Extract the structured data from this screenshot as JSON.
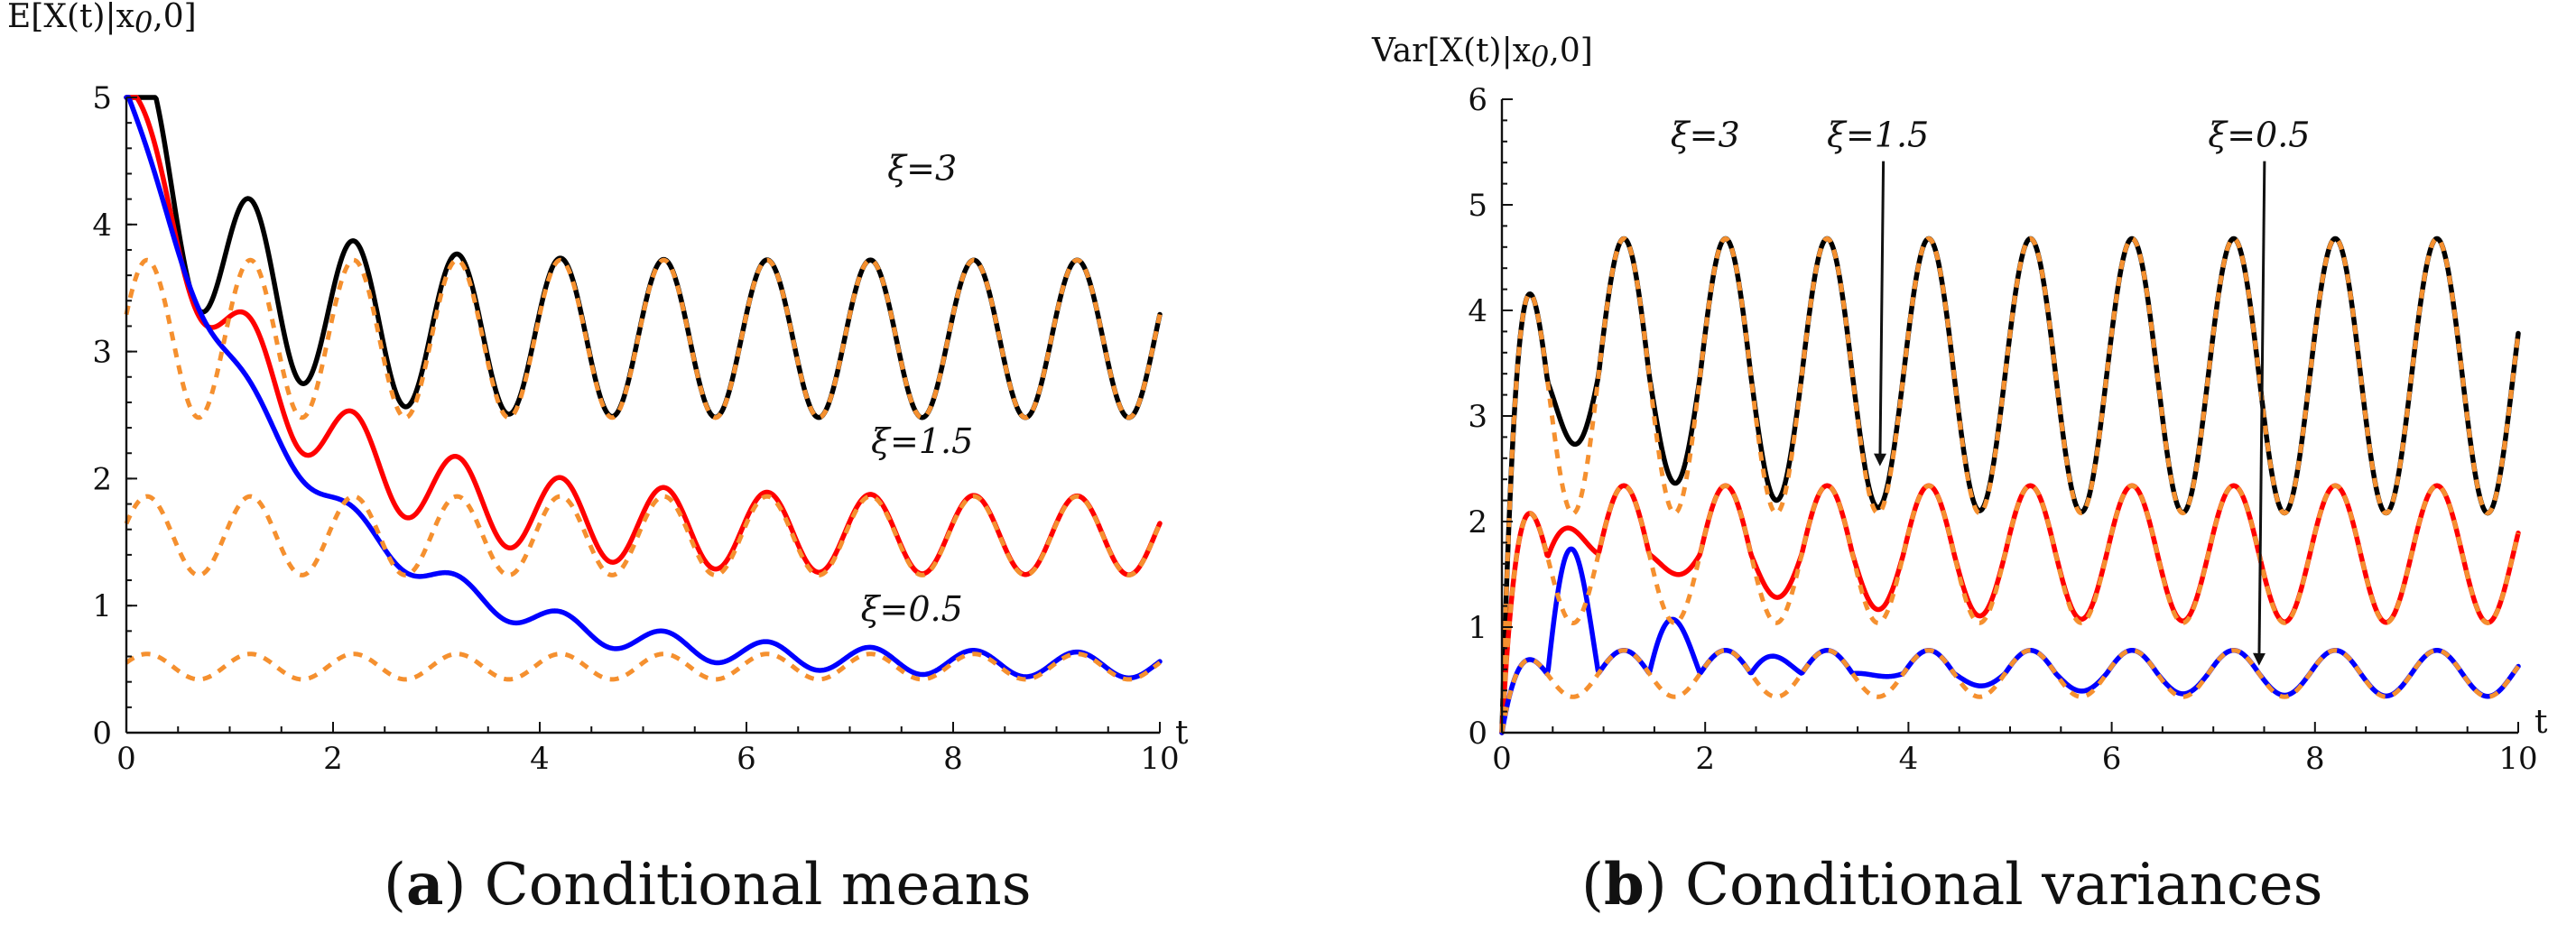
{
  "chart_data": [
    {
      "type": "line",
      "panel": "a",
      "title": "Conditional means",
      "caption_letter": "a",
      "ylabel": "E[X(t)|x",
      "ylabel_sub": "0",
      "ylabel_tail": ",0]",
      "xlabel": "t",
      "xlim": [
        0,
        10
      ],
      "ylim": [
        0,
        5
      ],
      "xticks": [
        "0",
        "2",
        "4",
        "6",
        "8",
        "10"
      ],
      "yticks": [
        "0",
        "1",
        "2",
        "3",
        "4",
        "5"
      ],
      "annotations": [
        {
          "text": "ξ=3",
          "x": 7.7,
          "y": 4.35
        },
        {
          "text": "ξ=1.5",
          "x": 7.7,
          "y": 2.2
        },
        {
          "text": "ξ=0.5",
          "x": 7.6,
          "y": 0.88
        }
      ],
      "series": [
        {
          "name": "ξ=3",
          "color": "#000000",
          "dashed": false,
          "kind": "mean",
          "params": {
            "m": 3.1,
            "A": 0.62,
            "B": 1.9,
            "d": 1.15
          }
        },
        {
          "name": "ξ=1.5",
          "color": "#ff0000",
          "dashed": false,
          "kind": "mean",
          "params": {
            "m": 1.55,
            "A": 0.31,
            "B": 3.45,
            "d": 0.75
          }
        },
        {
          "name": "ξ=0.5",
          "color": "#0000ff",
          "dashed": false,
          "kind": "mean",
          "params": {
            "m": 0.52,
            "A": 0.1,
            "B": 4.5,
            "d": 0.62
          }
        },
        {
          "name": "ξ=3 stationary",
          "color": "#f5902f",
          "dashed": true,
          "kind": "mean",
          "params": {
            "m": 3.1,
            "A": 0.62,
            "B": 0,
            "d": 1
          }
        },
        {
          "name": "ξ=1.5 stationary",
          "color": "#f5902f",
          "dashed": true,
          "kind": "mean",
          "params": {
            "m": 1.55,
            "A": 0.31,
            "B": 0,
            "d": 1
          }
        },
        {
          "name": "ξ=0.5 stationary",
          "color": "#f5902f",
          "dashed": true,
          "kind": "mean",
          "params": {
            "m": 0.52,
            "A": 0.1,
            "B": 0,
            "d": 1
          }
        }
      ]
    },
    {
      "type": "line",
      "panel": "b",
      "title": "Conditional variances",
      "caption_letter": "b",
      "ylabel": "Var[X(t)|x",
      "ylabel_sub": "0",
      "ylabel_tail": ",0]",
      "xlabel": "t",
      "xlim": [
        0,
        10
      ],
      "ylim": [
        0,
        6
      ],
      "xticks": [
        "0",
        "2",
        "4",
        "6",
        "8",
        "10"
      ],
      "yticks": [
        "0",
        "1",
        "2",
        "3",
        "4",
        "5",
        "6"
      ],
      "annotations": [
        {
          "text": "ξ=3",
          "x": 2.0,
          "y": 5.55,
          "arrow": false
        },
        {
          "text": "ξ=1.5",
          "x": 3.7,
          "y": 5.55,
          "arrow": true,
          "ax": 3.72,
          "ay": 2.55
        },
        {
          "text": "ξ=0.5",
          "x": 7.45,
          "y": 5.55,
          "arrow": true,
          "ax": 7.45,
          "ay": 0.66
        }
      ],
      "series": [
        {
          "name": "ξ=3",
          "color": "#000000",
          "dashed": false,
          "kind": "var",
          "params": {
            "m": 3.38,
            "A": 1.3,
            "C": 1.2,
            "d": 0.85
          }
        },
        {
          "name": "ξ=1.5",
          "color": "#ff0000",
          "dashed": false,
          "kind": "var",
          "params": {
            "m": 1.69,
            "A": 0.65,
            "C": 1.4,
            "d": 0.65
          }
        },
        {
          "name": "ξ=0.5",
          "color": "#0000ff",
          "dashed": false,
          "kind": "var",
          "params": {
            "m": 0.56,
            "A": 0.22,
            "C": 2.2,
            "d": 0.65
          }
        },
        {
          "name": "ξ=3 stationary",
          "color": "#f5902f",
          "dashed": true,
          "kind": "var",
          "params": {
            "m": 3.38,
            "A": 1.3,
            "C": 0,
            "d": 1
          }
        },
        {
          "name": "ξ=1.5 stationary",
          "color": "#f5902f",
          "dashed": true,
          "kind": "var",
          "params": {
            "m": 1.69,
            "A": 0.65,
            "C": 0,
            "d": 1
          }
        },
        {
          "name": "ξ=0.5 stationary",
          "color": "#f5902f",
          "dashed": true,
          "kind": "var",
          "params": {
            "m": 0.56,
            "A": 0.22,
            "C": 0,
            "d": 1
          }
        }
      ]
    }
  ]
}
